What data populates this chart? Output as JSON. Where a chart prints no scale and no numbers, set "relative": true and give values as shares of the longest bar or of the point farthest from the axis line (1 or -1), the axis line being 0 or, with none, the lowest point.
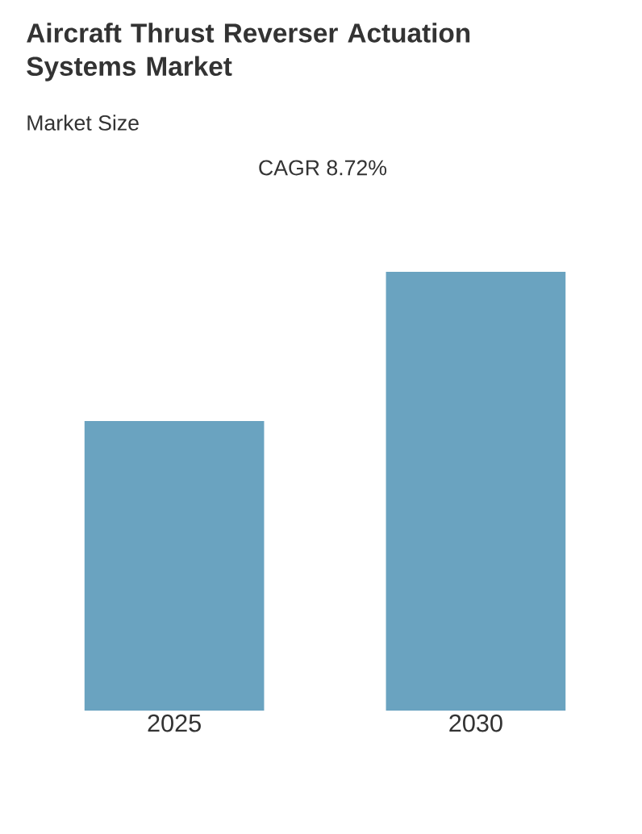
{
  "chart_data": {
    "type": "bar",
    "title": "Aircraft Thrust Reverser Actuation Systems Market",
    "subtitle": "Market Size",
    "annotations": [
      "CAGR 8.72%"
    ],
    "categories": [
      "2025",
      "2030"
    ],
    "values": [
      0.66,
      1
    ],
    "color": "#6aa3c0",
    "relative": true
  }
}
